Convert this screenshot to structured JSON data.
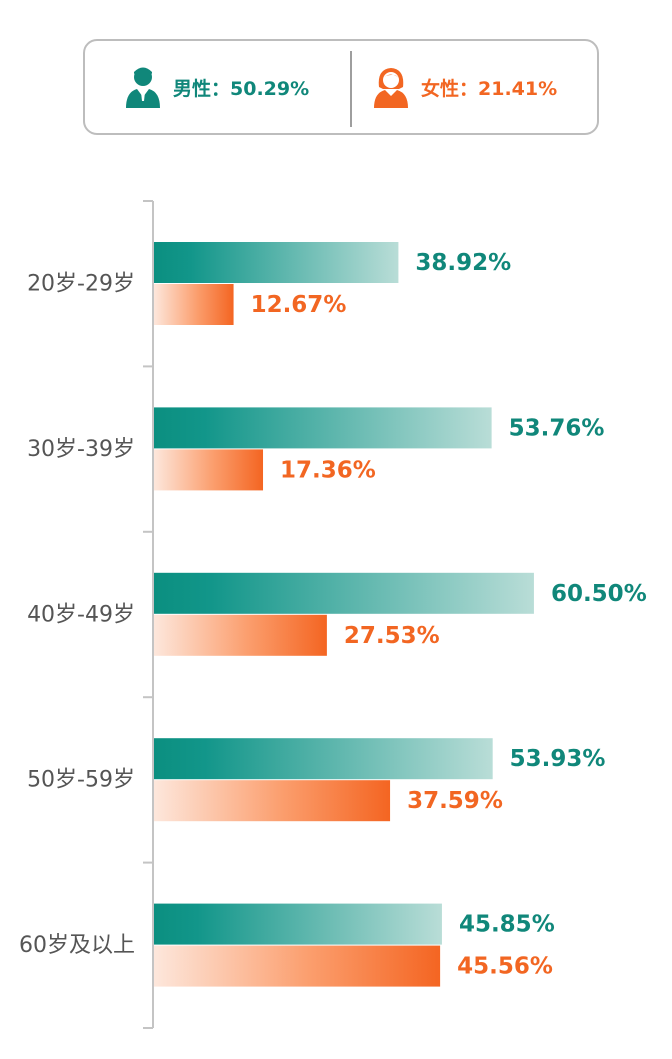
{
  "legend": {
    "male": {
      "label": "男性：50.29%",
      "color": "#10877a",
      "icon": "male-person-icon"
    },
    "female": {
      "label": "女性：21.41%",
      "color": "#f26622",
      "icon": "female-person-icon"
    }
  },
  "chart_data": {
    "type": "bar",
    "orientation": "horizontal",
    "categories": [
      "20岁-29岁",
      "30岁-39岁",
      "40岁-49岁",
      "50岁-59岁",
      "60岁及以上"
    ],
    "series": [
      {
        "name": "男性",
        "color": "#10877a",
        "values": [
          38.92,
          53.76,
          60.5,
          53.93,
          45.85
        ],
        "labels": [
          "38.92%",
          "53.76%",
          "60.50%",
          "53.93%",
          "45.85%"
        ]
      },
      {
        "name": "女性",
        "color": "#f26622",
        "values": [
          12.67,
          17.36,
          27.53,
          37.59,
          45.56
        ],
        "labels": [
          "12.67%",
          "17.36%",
          "27.53%",
          "37.59%",
          "45.56%"
        ]
      }
    ],
    "xlim": [
      0,
      100
    ],
    "grid": false,
    "legend_position": "top"
  }
}
